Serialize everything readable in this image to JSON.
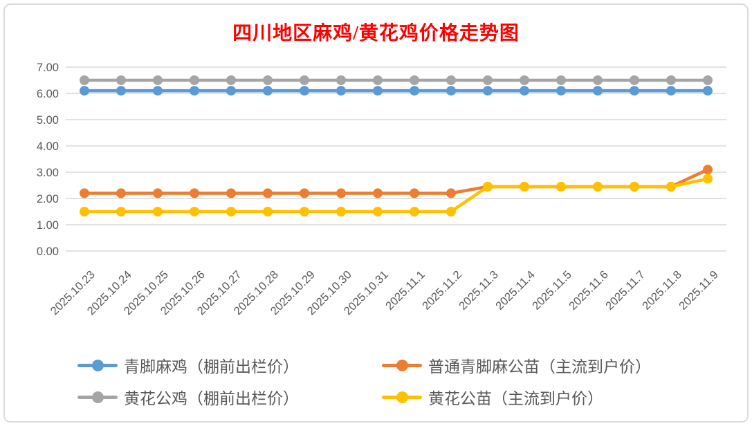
{
  "page": {
    "background": "#FFFFFF",
    "border_color": "#DBDBDB"
  },
  "chart_data": {
    "type": "line",
    "title": "四川地区麻鸡/黄花鸡价格走势图",
    "title_color": "#FF0000",
    "categories": [
      "2025.10.23",
      "2025.10.24",
      "2025.10.25",
      "2025.10.26",
      "2025.10.27",
      "2025.10.28",
      "2025.10.29",
      "2025.10.30",
      "2025.10.31",
      "2025.11.1",
      "2025.11.2",
      "2025.11.3",
      "2025.11.4",
      "2025.11.5",
      "2025.11.6",
      "2025.11.7",
      "2025.11.8",
      "2025.11.9"
    ],
    "series": [
      {
        "name": "青脚麻鸡（棚前出栏价）",
        "color": "#5B9BD5",
        "values": [
          6.1,
          6.1,
          6.1,
          6.1,
          6.1,
          6.1,
          6.1,
          6.1,
          6.1,
          6.1,
          6.1,
          6.1,
          6.1,
          6.1,
          6.1,
          6.1,
          6.1,
          6.1
        ]
      },
      {
        "name": "普通青脚麻公苗（主流到户价）",
        "color": "#ED7D31",
        "values": [
          2.2,
          2.2,
          2.2,
          2.2,
          2.2,
          2.2,
          2.2,
          2.2,
          2.2,
          2.2,
          2.2,
          2.45,
          2.45,
          2.45,
          2.45,
          2.45,
          2.45,
          3.1
        ]
      },
      {
        "name": "黄花公鸡（棚前出栏价）",
        "color": "#A5A5A5",
        "values": [
          6.5,
          6.5,
          6.5,
          6.5,
          6.5,
          6.5,
          6.5,
          6.5,
          6.5,
          6.5,
          6.5,
          6.5,
          6.5,
          6.5,
          6.5,
          6.5,
          6.5,
          6.5
        ]
      },
      {
        "name": "黄花公苗（主流到户价）",
        "color": "#FFC000",
        "values": [
          1.5,
          1.5,
          1.5,
          1.5,
          1.5,
          1.5,
          1.5,
          1.5,
          1.5,
          1.5,
          1.5,
          2.45,
          2.45,
          2.45,
          2.45,
          2.45,
          2.45,
          2.75
        ]
      }
    ],
    "y_axis": {
      "min": 0,
      "max": 7,
      "step": 1,
      "tick_labels": [
        "0.00",
        "1.00",
        "2.00",
        "3.00",
        "4.00",
        "5.00",
        "6.00",
        "7.00"
      ]
    },
    "x_axis": {
      "label_rotation_deg": 45
    },
    "grid": true,
    "legend_position": "bottom",
    "axis_label_color": "#595959",
    "gridline_color": "#D9D9D9"
  }
}
